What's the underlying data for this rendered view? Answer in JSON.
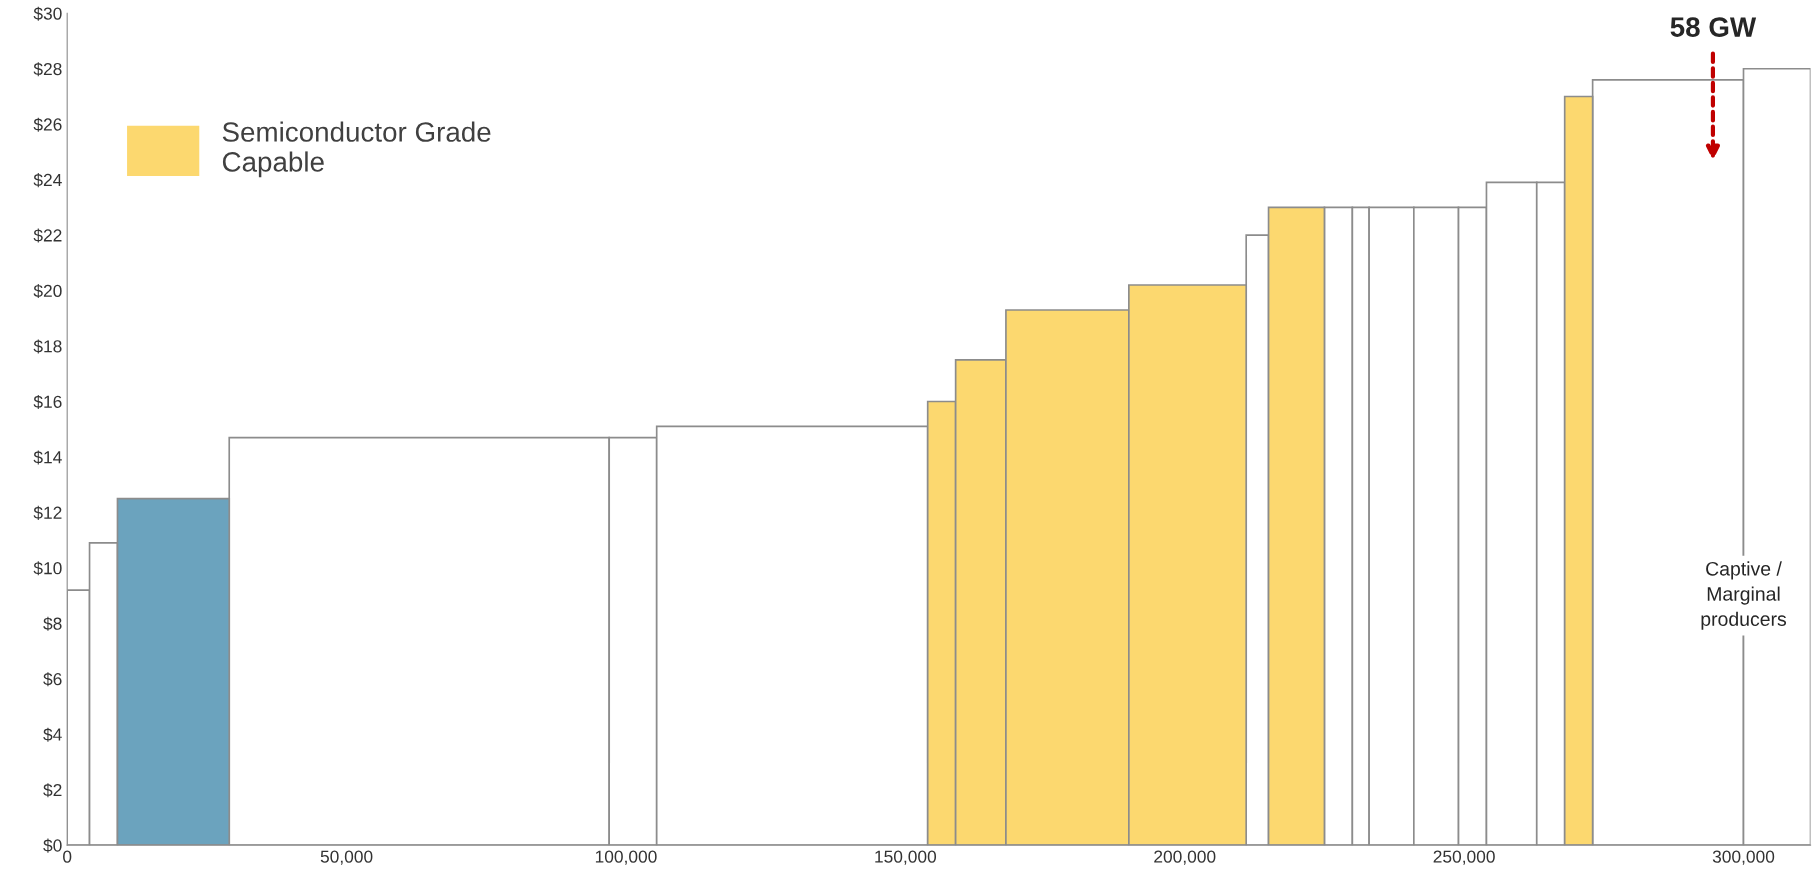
{
  "chart_data": {
    "type": "histogram",
    "bins": [
      0,
      4000,
      9000,
      29000,
      97000,
      105500,
      154000,
      159000,
      168000,
      190000,
      211000,
      215000,
      225000,
      230000,
      233000,
      241000,
      249000,
      254000,
      263000,
      268000,
      273000,
      300000,
      312000
    ],
    "series": [
      {
        "color": "#ffffff",
        "values": [
          9.2,
          10.9,
          null,
          14.7,
          14.7,
          15.1,
          null,
          null,
          null,
          null,
          22.0,
          null,
          23.0,
          23.0,
          23.0,
          23.0,
          23.0,
          23.9,
          23.9,
          null,
          27.6,
          28.0
        ]
      },
      {
        "name": "Semiconductor Grade Capable",
        "color": "#fcd86f",
        "values": [
          null,
          null,
          null,
          null,
          null,
          null,
          16.0,
          17.5,
          19.3,
          20.2,
          null,
          23.0,
          null,
          null,
          null,
          null,
          null,
          null,
          null,
          27.0,
          null,
          null
        ]
      },
      {
        "color": "#6ba3be",
        "values": [
          null,
          null,
          12.5,
          null,
          null,
          null,
          null,
          null,
          null,
          null,
          null,
          null,
          null,
          null,
          null,
          null,
          null,
          null,
          null,
          null,
          null,
          null
        ]
      }
    ],
    "xlim": [
      0,
      312000
    ],
    "xticks": [
      {
        "value": 0,
        "label": "0"
      },
      {
        "value": 50000,
        "label": "50,000"
      },
      {
        "value": 100000,
        "label": "100,000"
      },
      {
        "value": 150000,
        "label": "150,000"
      },
      {
        "value": 200000,
        "label": "200,000"
      },
      {
        "value": 250000,
        "label": "250,000"
      },
      {
        "value": 300000,
        "label": "300,000"
      }
    ],
    "ylim": [
      0,
      30
    ],
    "yticks": [
      {
        "value": 0,
        "label": "$0"
      },
      {
        "value": 2,
        "label": "$2"
      },
      {
        "value": 4,
        "label": "$4"
      },
      {
        "value": 6,
        "label": "$6"
      },
      {
        "value": 8,
        "label": "$8"
      },
      {
        "value": 10,
        "label": "$10"
      },
      {
        "value": 12,
        "label": "$12"
      },
      {
        "value": 14,
        "label": "$14"
      },
      {
        "value": 16,
        "label": "$16"
      },
      {
        "value": 18,
        "label": "$18"
      },
      {
        "value": 20,
        "label": "$20"
      },
      {
        "value": 22,
        "label": "$22"
      },
      {
        "value": 24,
        "label": "$24"
      },
      {
        "value": 26,
        "label": "$26"
      },
      {
        "value": 28,
        "label": "$28"
      },
      {
        "value": 30,
        "label": "$30"
      }
    ],
    "annotations": [
      "58 GW",
      "Captive / Marginal producers"
    ],
    "grid": false,
    "legend": "top left"
  }
}
